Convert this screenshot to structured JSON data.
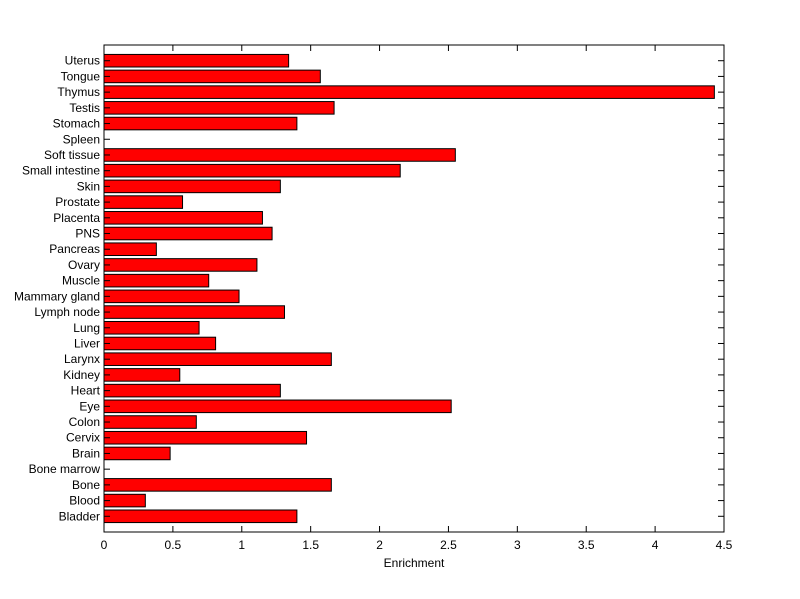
{
  "chart_data": {
    "type": "bar",
    "orientation": "horizontal",
    "title": "",
    "xlabel": "Enrichment",
    "ylabel": "",
    "xlim": [
      0,
      4.5
    ],
    "xticks": [
      "0",
      "0.5",
      "1",
      "1.5",
      "2",
      "2.5",
      "3",
      "3.5",
      "4",
      "4.5"
    ],
    "grid": false,
    "bar_color": "#ff0000",
    "bar_edge_color": "#000000",
    "categories": [
      "Bladder",
      "Blood",
      "Bone",
      "Bone marrow",
      "Brain",
      "Cervix",
      "Colon",
      "Eye",
      "Heart",
      "Kidney",
      "Larynx",
      "Liver",
      "Lung",
      "Lymph node",
      "Mammary gland",
      "Muscle",
      "Ovary",
      "Pancreas",
      "PNS",
      "Placenta",
      "Prostate",
      "Skin",
      "Small intestine",
      "Soft tissue",
      "Spleen",
      "Stomach",
      "Testis",
      "Thymus",
      "Tongue",
      "Uterus"
    ],
    "values": [
      1.4,
      0.3,
      1.65,
      0.0,
      0.48,
      1.47,
      0.67,
      2.52,
      1.28,
      0.55,
      1.65,
      0.81,
      0.69,
      1.31,
      0.98,
      0.76,
      1.11,
      0.38,
      1.22,
      1.15,
      0.57,
      1.28,
      2.15,
      2.55,
      0.0,
      1.4,
      1.67,
      4.43,
      1.57,
      1.34
    ]
  }
}
